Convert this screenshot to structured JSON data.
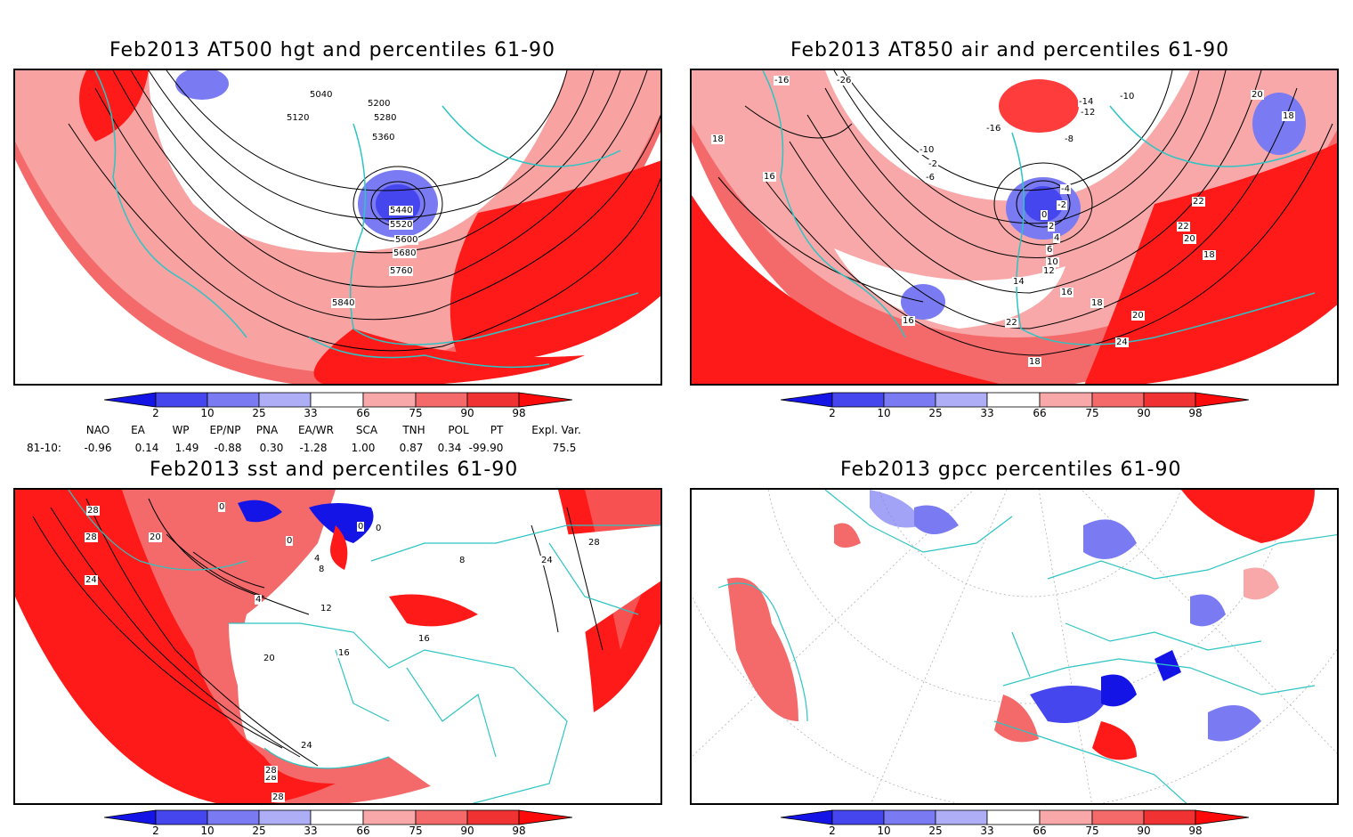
{
  "panels": [
    {
      "title": "Feb2013 AT500 hgt and percentiles 61-90",
      "contour_labels": [
        "5040",
        "5120",
        "5200",
        "5280",
        "5360",
        "5440",
        "5520",
        "5600",
        "5680",
        "5760",
        "5840"
      ]
    },
    {
      "title": "Feb2013 AT850 air and percentiles 61-90",
      "contour_labels": [
        "-26",
        "-14",
        "-12",
        "-10",
        "-16",
        "-8",
        "-10",
        "-2",
        "-6",
        "-4",
        "-2",
        "0",
        "2",
        "4",
        "6",
        "10",
        "12",
        "14",
        "16",
        "18",
        "20",
        "22",
        "24",
        "18",
        "16",
        "20",
        "22",
        "22",
        "20",
        "18",
        "-16",
        "18",
        "16",
        "18"
      ]
    },
    {
      "title": "Feb2013 sst and percentiles 61-90",
      "contour_labels": [
        "28",
        "28",
        "20",
        "24",
        "28",
        "0",
        "0",
        "0",
        "4",
        "8",
        "4",
        "12",
        "16",
        "20",
        "24",
        "28",
        "28",
        "16",
        "28",
        "24",
        "8",
        "0"
      ]
    },
    {
      "title": "Feb2013 gpcc percentiles 61-90",
      "contour_labels": []
    }
  ],
  "colorbar": {
    "labels": [
      "2",
      "10",
      "25",
      "33",
      "66",
      "75",
      "90",
      "98"
    ],
    "colors": [
      "#1414e6",
      "#4646ee",
      "#7a7af2",
      "#aeaef6",
      "#ffffff",
      "#f8a8a8",
      "#f46a6a",
      "#f03232",
      "#ff0a0a"
    ]
  },
  "indices": {
    "headers": [
      "NAO",
      "EA",
      "WP",
      "EP/NP",
      "PNA",
      "EA/WR",
      "SCA",
      "TNH",
      "POL",
      "PT",
      "Expl. Var."
    ],
    "row_label": "81-10:",
    "values": [
      "-0.96",
      "0.14",
      "1.49",
      "-0.88",
      "0.30",
      "-1.28",
      "1.00",
      "0.87",
      "0.34",
      "-99.90",
      "75.5"
    ]
  },
  "map_colors": {
    "coast": "#2ec4c4",
    "land_fill": "#ffffff",
    "hot": "#ff1a1a",
    "warm": "#f46a6a",
    "mild": "#f8a8a8",
    "cold": "#5555ee",
    "contour": "#000000"
  }
}
